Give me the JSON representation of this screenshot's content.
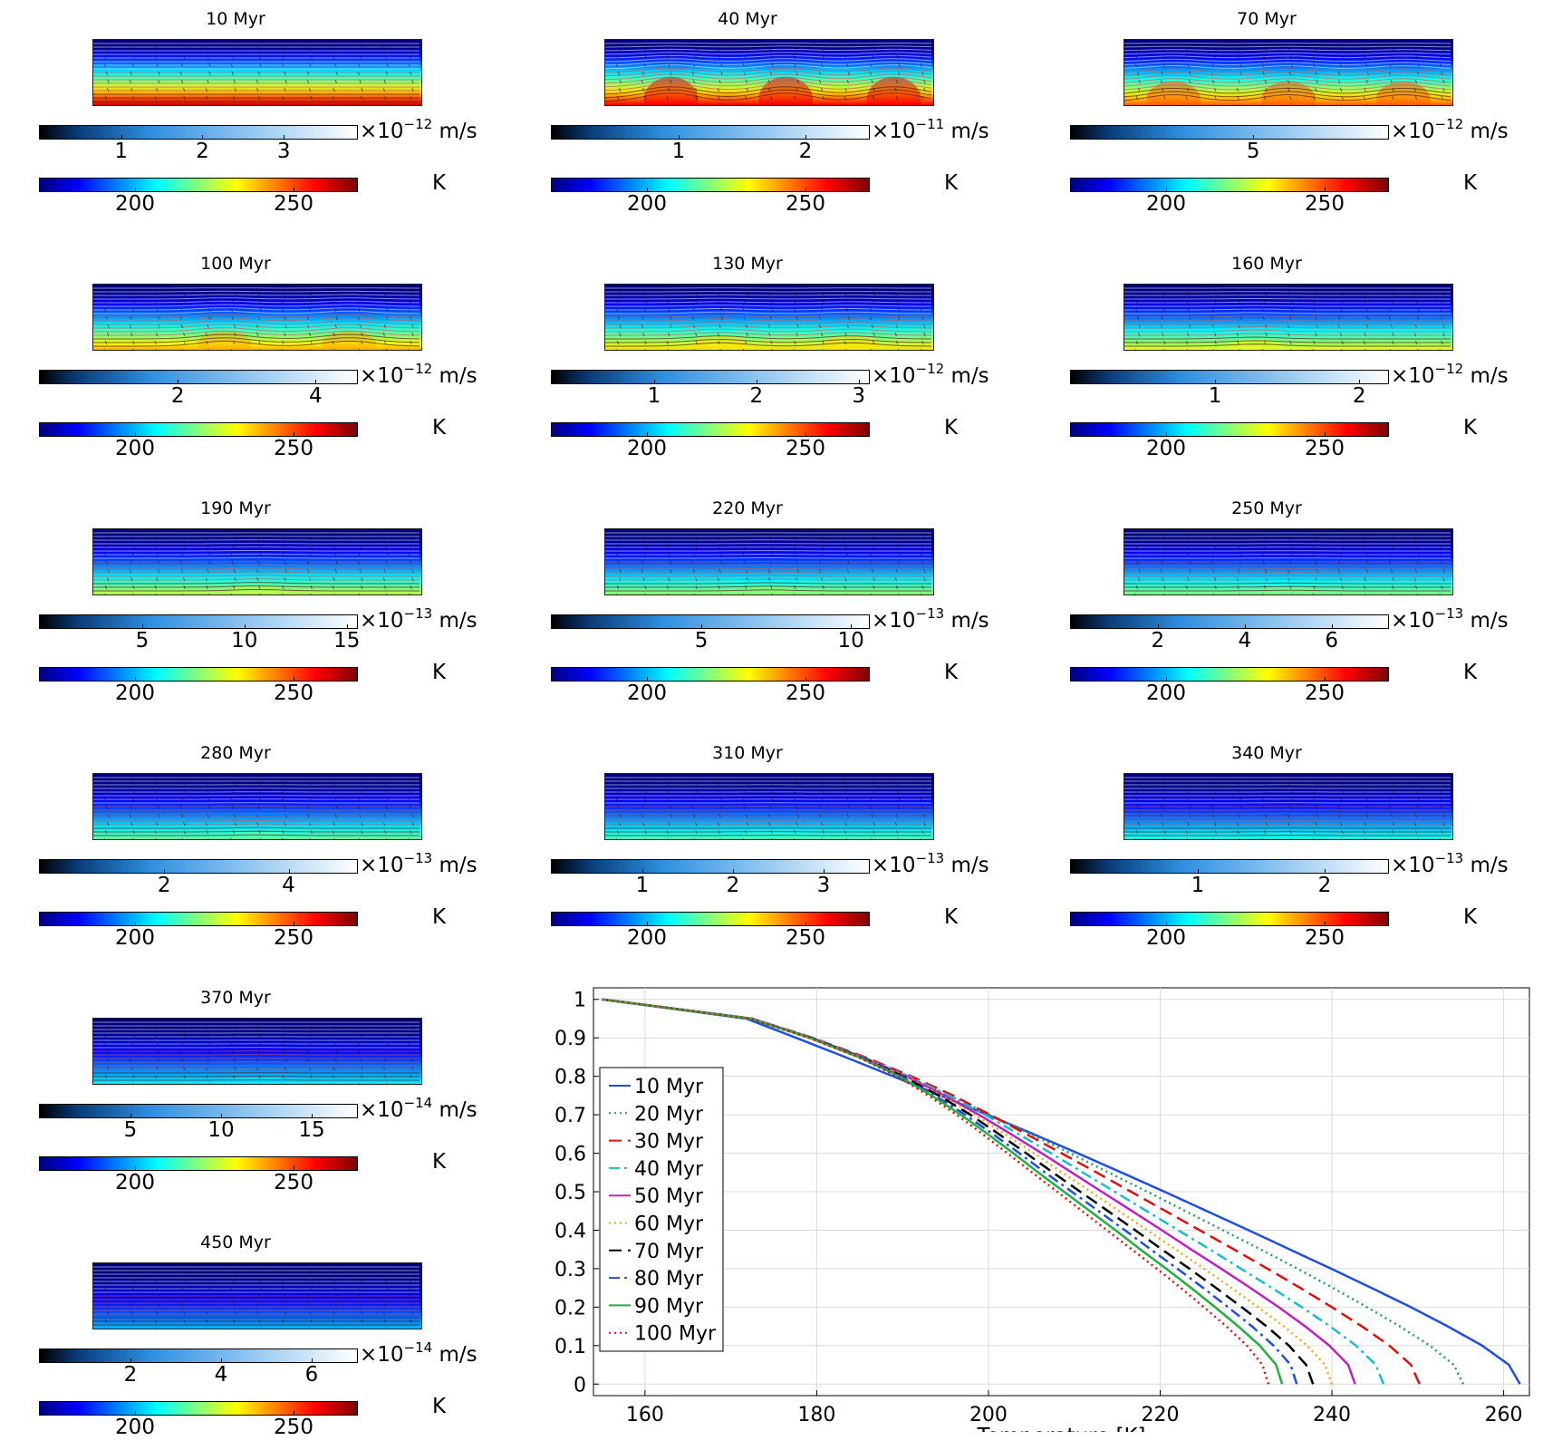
{
  "panels": [
    {
      "title": "10 Myr",
      "vel_ticks": [
        "1",
        "2",
        "3"
      ],
      "vel_exp": "-12",
      "vel_unit": "m/s",
      "temp_ticks": [
        "200",
        "250"
      ],
      "temp_unit": "K"
    },
    {
      "title": "40 Myr",
      "vel_ticks": [
        "1",
        "2"
      ],
      "vel_exp": "-11",
      "vel_unit": "m/s",
      "temp_ticks": [
        "200",
        "250"
      ],
      "temp_unit": "K"
    },
    {
      "title": "70 Myr",
      "vel_ticks": [
        "5"
      ],
      "vel_exp": "-12",
      "vel_unit": "m/s",
      "temp_ticks": [
        "200",
        "250"
      ],
      "temp_unit": "K"
    },
    {
      "title": "100 Myr",
      "vel_ticks": [
        "2",
        "4"
      ],
      "vel_exp": "-12",
      "vel_unit": "m/s",
      "temp_ticks": [
        "200",
        "250"
      ],
      "temp_unit": "K"
    },
    {
      "title": "130 Myr",
      "vel_ticks": [
        "1",
        "2",
        "3"
      ],
      "vel_exp": "-12",
      "vel_unit": "m/s",
      "temp_ticks": [
        "200",
        "250"
      ],
      "temp_unit": "K"
    },
    {
      "title": "160 Myr",
      "vel_ticks": [
        "1",
        "2"
      ],
      "vel_exp": "-12",
      "vel_unit": "m/s",
      "temp_ticks": [
        "200",
        "250"
      ],
      "temp_unit": "K"
    },
    {
      "title": "190 Myr",
      "vel_ticks": [
        "5",
        "10",
        "15"
      ],
      "vel_exp": "-13",
      "vel_unit": "m/s",
      "temp_ticks": [
        "200",
        "250"
      ],
      "temp_unit": "K"
    },
    {
      "title": "220 Myr",
      "vel_ticks": [
        "5",
        "10"
      ],
      "vel_exp": "-13",
      "vel_unit": "m/s",
      "temp_ticks": [
        "200",
        "250"
      ],
      "temp_unit": "K"
    },
    {
      "title": "250 Myr",
      "vel_ticks": [
        "2",
        "4",
        "6"
      ],
      "vel_exp": "-13",
      "vel_unit": "m/s",
      "temp_ticks": [
        "200",
        "250"
      ],
      "temp_unit": "K"
    },
    {
      "title": "280 Myr",
      "vel_ticks": [
        "2",
        "4"
      ],
      "vel_exp": "-13",
      "vel_unit": "m/s",
      "temp_ticks": [
        "200",
        "250"
      ],
      "temp_unit": "K"
    },
    {
      "title": "310 Myr",
      "vel_ticks": [
        "1",
        "2",
        "3"
      ],
      "vel_exp": "-13",
      "vel_unit": "m/s",
      "temp_ticks": [
        "200",
        "250"
      ],
      "temp_unit": "K"
    },
    {
      "title": "340 Myr",
      "vel_ticks": [
        "1",
        "2"
      ],
      "vel_exp": "-13",
      "vel_unit": "m/s",
      "temp_ticks": [
        "200",
        "250"
      ],
      "temp_unit": "K"
    },
    {
      "title": "370 Myr",
      "vel_ticks": [
        "5",
        "10",
        "15"
      ],
      "vel_exp": "-14",
      "vel_unit": "m/s",
      "temp_ticks": [
        "200",
        "250"
      ],
      "temp_unit": "K"
    },
    {
      "title": "450 Myr",
      "vel_ticks": [
        "2",
        "4",
        "6"
      ],
      "vel_exp": "-14",
      "vel_unit": "m/s",
      "temp_ticks": [
        "200",
        "250"
      ],
      "temp_unit": "K"
    }
  ],
  "chart_data": [
    {
      "type": "heatmap",
      "description_role": "fields",
      "panels": [
        {
          "title": "10 Myr",
          "time_myr": 10,
          "velocity_colorbar": {
            "min": 0,
            "max": 3.9,
            "ticks": [
              1,
              2,
              3
            ],
            "scale": "1e-12",
            "unit": "m/s"
          },
          "temperature_colorbar": {
            "min": 170,
            "max": 270,
            "ticks": [
              200,
              250
            ],
            "unit": "K"
          },
          "t_bottom_K": 262,
          "plumes": [],
          "plume_amp": 0
        },
        {
          "title": "40 Myr",
          "time_myr": 40,
          "velocity_colorbar": {
            "min": 0,
            "max": 2.5,
            "ticks": [
              1,
              2
            ],
            "scale": "1e-11",
            "unit": "m/s"
          },
          "temperature_colorbar": {
            "min": 170,
            "max": 270,
            "ticks": [
              200,
              250
            ],
            "unit": "K"
          },
          "t_bottom_K": 258,
          "plumes": [
            0.2,
            0.55,
            0.88
          ],
          "plume_amp": 0.25
        },
        {
          "title": "70 Myr",
          "time_myr": 70,
          "velocity_colorbar": {
            "min": 0,
            "max": 8.7,
            "ticks": [
              5
            ],
            "scale": "1e-12",
            "unit": "m/s"
          },
          "temperature_colorbar": {
            "min": 170,
            "max": 270,
            "ticks": [
              200,
              250
            ],
            "unit": "K"
          },
          "t_bottom_K": 248,
          "plumes": [
            0.15,
            0.5,
            0.85
          ],
          "plume_amp": 0.2
        },
        {
          "title": "100 Myr",
          "time_myr": 100,
          "velocity_colorbar": {
            "min": 0,
            "max": 4.6,
            "ticks": [
              2,
              4
            ],
            "scale": "1e-12",
            "unit": "m/s"
          },
          "temperature_colorbar": {
            "min": 170,
            "max": 270,
            "ticks": [
              200,
              250
            ],
            "unit": "K"
          },
          "t_bottom_K": 240,
          "plumes": [
            0.4,
            0.78
          ],
          "plume_amp": 0.15
        },
        {
          "title": "130 Myr",
          "time_myr": 130,
          "velocity_colorbar": {
            "min": 0,
            "max": 3.1,
            "ticks": [
              1,
              2,
              3
            ],
            "scale": "1e-12",
            "unit": "m/s"
          },
          "temperature_colorbar": {
            "min": 170,
            "max": 270,
            "ticks": [
              200,
              250
            ],
            "unit": "K"
          },
          "t_bottom_K": 235,
          "plumes": [
            0.35,
            0.75
          ],
          "plume_amp": 0.1
        },
        {
          "title": "160 Myr",
          "time_myr": 160,
          "velocity_colorbar": {
            "min": 0,
            "max": 2.2,
            "ticks": [
              1,
              2
            ],
            "scale": "1e-12",
            "unit": "m/s"
          },
          "temperature_colorbar": {
            "min": 170,
            "max": 270,
            "ticks": [
              200,
              250
            ],
            "unit": "K"
          },
          "t_bottom_K": 230,
          "plumes": [
            0.4
          ],
          "plume_amp": 0.06
        },
        {
          "title": "190 Myr",
          "time_myr": 190,
          "velocity_colorbar": {
            "min": 0,
            "max": 15.5,
            "ticks": [
              5,
              10,
              15
            ],
            "scale": "1e-13",
            "unit": "m/s"
          },
          "temperature_colorbar": {
            "min": 170,
            "max": 270,
            "ticks": [
              200,
              250
            ],
            "unit": "K"
          },
          "t_bottom_K": 226,
          "plumes": [
            0.5
          ],
          "plume_amp": 0.04
        },
        {
          "title": "220 Myr",
          "time_myr": 220,
          "velocity_colorbar": {
            "min": 0,
            "max": 10.6,
            "ticks": [
              5,
              10
            ],
            "scale": "1e-13",
            "unit": "m/s"
          },
          "temperature_colorbar": {
            "min": 170,
            "max": 270,
            "ticks": [
              200,
              250
            ],
            "unit": "K"
          },
          "t_bottom_K": 222,
          "plumes": [
            0.5
          ],
          "plume_amp": 0.03
        },
        {
          "title": "250 Myr",
          "time_myr": 250,
          "velocity_colorbar": {
            "min": 0,
            "max": 7.3,
            "ticks": [
              2,
              4,
              6
            ],
            "scale": "1e-13",
            "unit": "m/s"
          },
          "temperature_colorbar": {
            "min": 170,
            "max": 270,
            "ticks": [
              200,
              250
            ],
            "unit": "K"
          },
          "t_bottom_K": 220,
          "plumes": [
            0.5
          ],
          "plume_amp": 0.02
        },
        {
          "title": "280 Myr",
          "time_myr": 280,
          "velocity_colorbar": {
            "min": 0,
            "max": 5.1,
            "ticks": [
              2,
              4
            ],
            "scale": "1e-13",
            "unit": "m/s"
          },
          "temperature_colorbar": {
            "min": 170,
            "max": 270,
            "ticks": [
              200,
              250
            ],
            "unit": "K"
          },
          "t_bottom_K": 217,
          "plumes": [
            0.5
          ],
          "plume_amp": 0.02
        },
        {
          "title": "310 Myr",
          "vel_time": 310,
          "time_myr": 310,
          "velocity_colorbar": {
            "min": 0,
            "max": 3.5,
            "ticks": [
              1,
              2,
              3
            ],
            "scale": "1e-13",
            "unit": "m/s"
          },
          "temperature_colorbar": {
            "min": 170,
            "max": 270,
            "ticks": [
              200,
              250
            ],
            "unit": "K"
          },
          "t_bottom_K": 214,
          "plumes": [
            0.5
          ],
          "plume_amp": 0.01
        },
        {
          "title": "340 Myr",
          "time_myr": 340,
          "velocity_colorbar": {
            "min": 0,
            "max": 2.5,
            "ticks": [
              1,
              2
            ],
            "scale": "1e-13",
            "unit": "m/s"
          },
          "temperature_colorbar": {
            "min": 170,
            "max": 270,
            "ticks": [
              200,
              250
            ],
            "unit": "K"
          },
          "t_bottom_K": 210,
          "plumes": [
            0.5
          ],
          "plume_amp": 0.01
        },
        {
          "title": "370 Myr",
          "time_myr": 370,
          "velocity_colorbar": {
            "min": 0,
            "max": 17.5,
            "ticks": [
              5,
              10,
              15
            ],
            "scale": "1e-14",
            "unit": "m/s"
          },
          "temperature_colorbar": {
            "min": 170,
            "max": 270,
            "ticks": [
              200,
              250
            ],
            "unit": "K"
          },
          "t_bottom_K": 206,
          "plumes": [
            0.5
          ],
          "plume_amp": 0.01
        },
        {
          "title": "450 Myr",
          "time_myr": 450,
          "velocity_colorbar": {
            "min": 0,
            "max": 7,
            "ticks": [
              2,
              4,
              6
            ],
            "scale": "1e-14",
            "unit": "m/s"
          },
          "temperature_colorbar": {
            "min": 170,
            "max": 270,
            "ticks": [
              200,
              250
            ],
            "unit": "K"
          },
          "t_bottom_K": 200,
          "plumes": [
            0.5
          ],
          "plume_amp": 0.0
        }
      ]
    },
    {
      "type": "line",
      "title": "",
      "xlabel": "Temperature [K]",
      "ylabel": "",
      "xlim": [
        154,
        263
      ],
      "ylim": [
        -0.03,
        1.03
      ],
      "xticks": [
        160,
        180,
        200,
        220,
        240,
        260
      ],
      "yticks": [
        0,
        0.1,
        0.2,
        0.3,
        0.4,
        0.5,
        0.6,
        0.7,
        0.8,
        0.9,
        1
      ],
      "ytick_labels": [
        "0",
        "0.1",
        "0.2",
        "0.3",
        "0.4",
        "0.5",
        "0.6",
        "0.7",
        "0.8",
        "0.9",
        "1"
      ],
      "grid": true,
      "legend_position": "left",
      "y": [
        0,
        0.05,
        0.1,
        0.15,
        0.2,
        0.25,
        0.3,
        0.35,
        0.4,
        0.45,
        0.5,
        0.55,
        0.6,
        0.65,
        0.7,
        0.75,
        0.8,
        0.85,
        0.9,
        0.95,
        1
      ],
      "series": [
        {
          "name": "10 Myr",
          "color": "#1f4fe0",
          "dash": "solid",
          "x": [
            261.9,
            260.6,
            257.5,
            253.5,
            249.2,
            244.6,
            239.9,
            235.1,
            230.3,
            225.4,
            220.5,
            215.5,
            210.4,
            205.2,
            199.9,
            194.4,
            188.9,
            183.3,
            177.6,
            171.8,
            155
          ]
        },
        {
          "name": "20 Myr",
          "color": "#22a05a",
          "dash": "dotted",
          "x": [
            255.3,
            254.2,
            251.4,
            247.9,
            244.1,
            240.1,
            236.0,
            231.7,
            227.3,
            222.9,
            218.5,
            214.0,
            209.5,
            204.9,
            200.2,
            195.4,
            190.4,
            185.2,
            179.5,
            172.5,
            155
          ]
        },
        {
          "name": "30 Myr",
          "color": "#e01010",
          "dash": "dashed",
          "x": [
            250.2,
            249.2,
            246.7,
            243.5,
            240.0,
            236.3,
            232.5,
            228.6,
            224.6,
            220.6,
            216.6,
            212.6,
            208.5,
            204.4,
            200.2,
            195.9,
            191.0,
            185.6,
            179.5,
            172.5,
            155
          ]
        },
        {
          "name": "40 Myr",
          "color": "#17becf",
          "dash": "dashdot",
          "x": [
            246.0,
            245.1,
            242.8,
            239.8,
            236.5,
            233.0,
            229.4,
            225.8,
            222.1,
            218.4,
            214.7,
            211.0,
            207.3,
            203.5,
            199.6,
            195.4,
            190.7,
            185.4,
            179.4,
            172.4,
            155
          ]
        },
        {
          "name": "50 Myr",
          "color": "#c020c0",
          "dash": "solid",
          "x": [
            242.7,
            241.9,
            239.7,
            236.9,
            233.8,
            230.5,
            227.1,
            223.6,
            220.2,
            216.7,
            213.2,
            209.7,
            206.2,
            202.6,
            198.9,
            194.9,
            190.4,
            185.3,
            179.4,
            172.4,
            155
          ]
        },
        {
          "name": "60 Myr",
          "color": "#f0a818",
          "dash": "dotted",
          "x": [
            240.0,
            239.2,
            237.1,
            234.4,
            231.4,
            228.3,
            225.1,
            221.8,
            218.5,
            215.2,
            211.9,
            208.6,
            205.3,
            201.9,
            198.4,
            194.5,
            190.2,
            185.2,
            179.3,
            172.4,
            155
          ]
        },
        {
          "name": "70 Myr",
          "color": "#000000",
          "dash": "dashed",
          "x": [
            237.8,
            237.0,
            235.0,
            232.4,
            229.5,
            226.5,
            223.4,
            220.2,
            217.1,
            213.9,
            210.7,
            207.5,
            204.4,
            201.2,
            197.9,
            194.2,
            190.0,
            185.1,
            179.3,
            172.3,
            155
          ]
        },
        {
          "name": "80 Myr",
          "color": "#1f4fe0",
          "dash": "dashdot",
          "x": [
            235.9,
            235.2,
            233.2,
            230.7,
            227.9,
            225.0,
            222.0,
            218.9,
            215.9,
            212.8,
            209.7,
            206.6,
            203.6,
            200.5,
            197.3,
            193.8,
            189.8,
            185.0,
            179.2,
            172.3,
            155
          ]
        },
        {
          "name": "90 Myr",
          "color": "#22b040",
          "dash": "solid",
          "x": [
            234.2,
            233.5,
            231.6,
            229.1,
            226.4,
            223.6,
            220.7,
            217.7,
            214.8,
            211.8,
            208.8,
            205.8,
            202.9,
            199.9,
            196.8,
            193.4,
            189.6,
            184.9,
            179.2,
            172.3,
            155
          ]
        },
        {
          "name": "100 Myr",
          "color": "#e01010",
          "dash": "dotted",
          "x": [
            232.6,
            231.9,
            230.1,
            227.7,
            225.1,
            222.4,
            219.6,
            216.7,
            213.8,
            210.9,
            208.0,
            205.1,
            202.2,
            199.3,
            196.3,
            193.0,
            189.4,
            184.8,
            179.1,
            172.2,
            155
          ]
        }
      ]
    }
  ]
}
